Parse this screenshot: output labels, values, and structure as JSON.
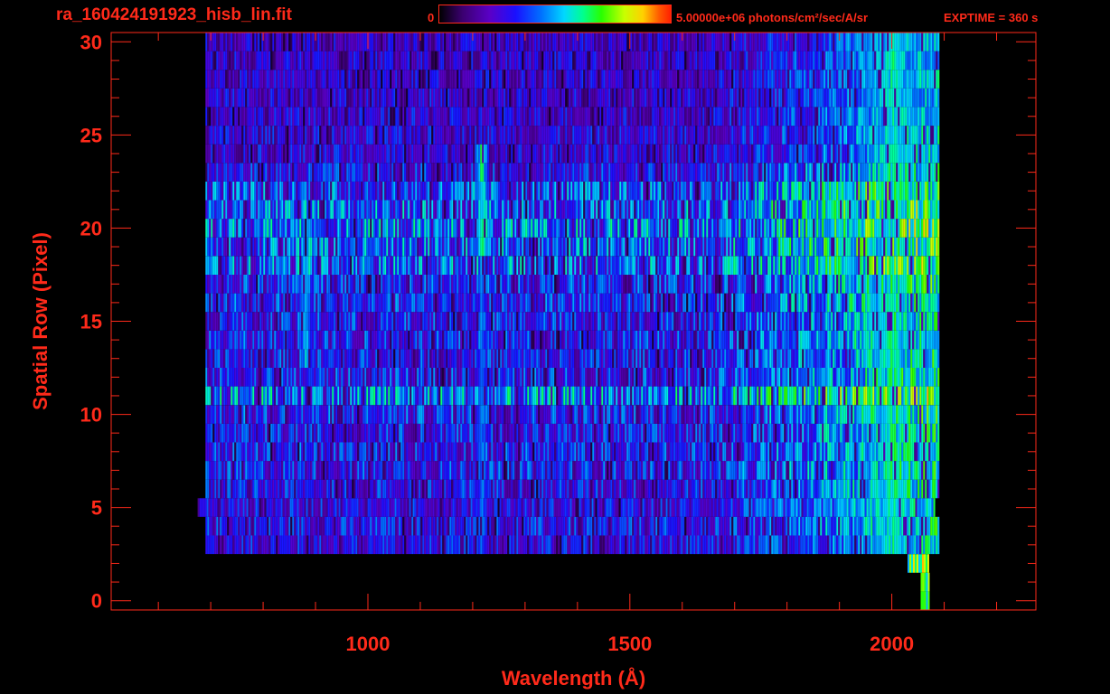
{
  "header": {
    "filename": "ra_160424191923_hisb_lin.fit",
    "colorbar_min": "0",
    "colorbar_max": "5.00000e+06 photons/cm²/sec/A/sr",
    "exptime": "EXPTIME = 360 s"
  },
  "colors": {
    "axis": "#ff2a1a",
    "background": "#000000"
  },
  "chart_data": {
    "type": "heatmap",
    "title": "ra_160424191923_hisb_lin.fit",
    "xlabel": "Wavelength (Å)",
    "ylabel": "Spatial Row (Pixel)",
    "xlim": [
      510,
      2275
    ],
    "ylim": [
      -0.5,
      30.5
    ],
    "x_ticks": [
      1000,
      1500,
      2000
    ],
    "x_ticklabels": [
      "1000",
      "1500",
      "2000"
    ],
    "y_ticks": [
      0,
      5,
      10,
      15,
      20,
      25,
      30
    ],
    "y_ticklabels": [
      "0",
      "5",
      "10",
      "15",
      "20",
      "25",
      "30"
    ],
    "colorbar_range": [
      0,
      5000000
    ],
    "grid": false,
    "rows": [
      {
        "row": 0,
        "x_start": 2055,
        "x_end": 2070,
        "level": 0.4
      },
      {
        "row": 1,
        "x_start": 2055,
        "x_end": 2070,
        "level": 0.4
      },
      {
        "row": 2,
        "x_start": 2030,
        "x_end": 2070,
        "level": 0.45
      },
      {
        "row": 3,
        "x_start": 690,
        "x_end": 2090,
        "level": 0.3
      },
      {
        "row": 4,
        "x_start": 690,
        "x_end": 2090,
        "level": 0.32
      },
      {
        "row": 5,
        "x_start": 675,
        "x_end": 2080,
        "level": 0.3
      },
      {
        "row": 6,
        "x_start": 690,
        "x_end": 2090,
        "level": 0.32
      },
      {
        "row": 7,
        "x_start": 690,
        "x_end": 2090,
        "level": 0.34
      },
      {
        "row": 8,
        "x_start": 690,
        "x_end": 2090,
        "level": 0.34
      },
      {
        "row": 9,
        "x_start": 690,
        "x_end": 2090,
        "level": 0.33
      },
      {
        "row": 10,
        "x_start": 690,
        "x_end": 2090,
        "level": 0.35
      },
      {
        "row": 11,
        "x_start": 690,
        "x_end": 2090,
        "level": 0.45
      },
      {
        "row": 12,
        "x_start": 690,
        "x_end": 2090,
        "level": 0.34
      },
      {
        "row": 13,
        "x_start": 690,
        "x_end": 2090,
        "level": 0.33
      },
      {
        "row": 14,
        "x_start": 690,
        "x_end": 2090,
        "level": 0.34
      },
      {
        "row": 15,
        "x_start": 690,
        "x_end": 2090,
        "level": 0.34
      },
      {
        "row": 16,
        "x_start": 690,
        "x_end": 2090,
        "level": 0.35
      },
      {
        "row": 17,
        "x_start": 690,
        "x_end": 2090,
        "level": 0.35
      },
      {
        "row": 18,
        "x_start": 690,
        "x_end": 2090,
        "level": 0.42
      },
      {
        "row": 19,
        "x_start": 690,
        "x_end": 2090,
        "level": 0.42
      },
      {
        "row": 20,
        "x_start": 690,
        "x_end": 2090,
        "level": 0.44
      },
      {
        "row": 21,
        "x_start": 690,
        "x_end": 2090,
        "level": 0.42
      },
      {
        "row": 22,
        "x_start": 690,
        "x_end": 2090,
        "level": 0.4
      },
      {
        "row": 23,
        "x_start": 690,
        "x_end": 2090,
        "level": 0.32
      },
      {
        "row": 24,
        "x_start": 690,
        "x_end": 2090,
        "level": 0.28
      },
      {
        "row": 25,
        "x_start": 690,
        "x_end": 2090,
        "level": 0.28
      },
      {
        "row": 26,
        "x_start": 690,
        "x_end": 2090,
        "level": 0.27
      },
      {
        "row": 27,
        "x_start": 690,
        "x_end": 2090,
        "level": 0.27
      },
      {
        "row": 28,
        "x_start": 690,
        "x_end": 2090,
        "level": 0.26
      },
      {
        "row": 29,
        "x_start": 690,
        "x_end": 2090,
        "level": 0.26
      },
      {
        "row": 30,
        "x_start": 690,
        "x_end": 2090,
        "level": 0.25
      }
    ],
    "features": [
      {
        "x": 880,
        "rows": [
          13,
          18
        ],
        "level": 0.58
      },
      {
        "x": 905,
        "rows": [
          19,
          21
        ],
        "level": 0.5
      },
      {
        "x": 915,
        "rows": [
          22,
          23
        ],
        "level": 0.45
      },
      {
        "x": 1216,
        "rows": [
          19,
          24
        ],
        "level": 0.65
      },
      {
        "x": 1216,
        "rows": [
          3,
          18
        ],
        "level": 0.48
      },
      {
        "x": 1030,
        "rows": [
          3,
          23
        ],
        "level": 0.35
      },
      {
        "x": 1900,
        "rows": [
          11,
          11
        ],
        "level": 0.62
      },
      {
        "x": 1900,
        "rows": [
          18,
          22
        ],
        "level": 0.58
      },
      {
        "x": 2000,
        "rows": [
          3,
          30
        ],
        "level": 0.6
      }
    ]
  }
}
